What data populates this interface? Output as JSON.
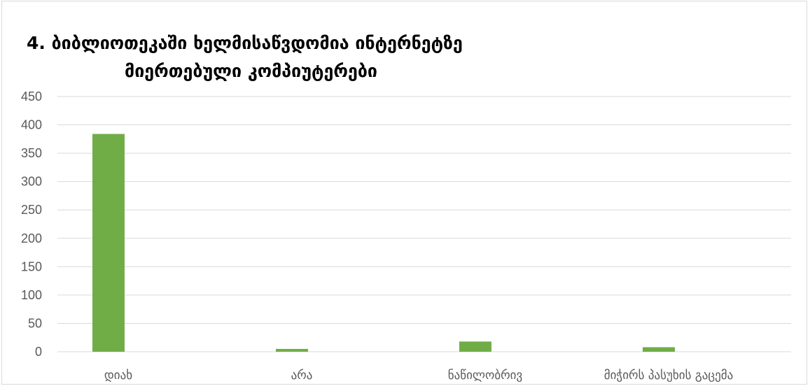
{
  "chart_data": {
    "type": "bar",
    "title_line1": "4. ბიბლიოთეკაში ხელმისაწვდომია ინტერნეტზე",
    "title_line2": "მიერთებული კომპიუტერები",
    "xlabel": "",
    "ylabel": "",
    "categories": [
      "დიახ",
      "არა",
      "ნაწილობრივ",
      "მიჭირს პასუხის გაცემა"
    ],
    "series": [
      {
        "values": [
          384,
          5,
          18,
          8
        ],
        "color": "#70ad47"
      }
    ],
    "ylim": [
      0,
      450
    ],
    "yticks": [
      0,
      50,
      100,
      150,
      200,
      250,
      300,
      350,
      400,
      450
    ],
    "grid": true,
    "gridColor": "#d9d9d9",
    "legend": "none"
  }
}
